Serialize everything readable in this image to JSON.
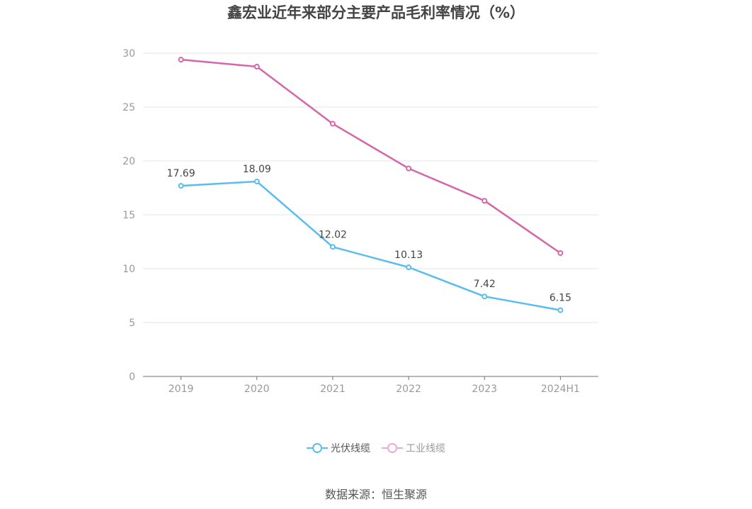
{
  "chart_data": {
    "type": "line",
    "title": "鑫宏业近年来部分主要产品毛利率情况（%）",
    "categories": [
      "2019",
      "2020",
      "2021",
      "2022",
      "2023",
      "2024H1"
    ],
    "ylim": [
      0,
      30
    ],
    "yticks": [
      0,
      5,
      10,
      15,
      20,
      25,
      30
    ],
    "xlabel": "",
    "ylabel": "",
    "grid": true,
    "legend_position": "bottom-center",
    "series": [
      {
        "name": "光伏线缆",
        "color": "#5bbdef",
        "values": [
          17.69,
          18.09,
          12.02,
          10.13,
          7.42,
          6.15
        ],
        "labels": [
          "17.69",
          "18.09",
          "12.02",
          "10.13",
          "7.42",
          "6.15"
        ],
        "show_labels": true
      },
      {
        "name": "工业线缆",
        "color": "#d466aa",
        "legend_color": "#eeaad4",
        "values": [
          29.4,
          28.75,
          23.45,
          19.3,
          16.3,
          11.45
        ],
        "show_labels": false
      }
    ],
    "source": "数据来源：恒生聚源"
  }
}
